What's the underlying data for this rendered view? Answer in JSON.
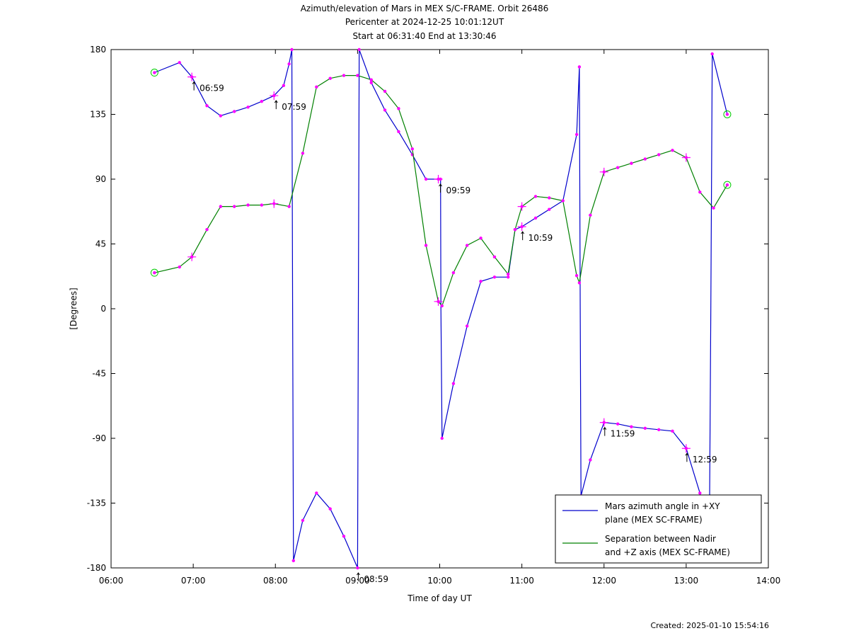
{
  "chart_data": {
    "type": "line",
    "title": "Azimuth/elevation of Mars in MEX S/C-FRAME.  Orbit 26486",
    "subtitle_lines": [
      "Pericenter at 2024-12-25 10:01:12UT",
      "Start at 06:31:40 End at 13:30:46"
    ],
    "xlabel": "Time of day UT",
    "ylabel": "[Degrees]",
    "xlim": [
      6,
      14
    ],
    "ylim": [
      -180,
      180
    ],
    "x_ticks": [
      6,
      7,
      8,
      9,
      10,
      11,
      12,
      13,
      14
    ],
    "x_tick_labels": [
      "06:00",
      "07:00",
      "08:00",
      "09:00",
      "10:00",
      "11:00",
      "12:00",
      "13:00",
      "14:00"
    ],
    "y_ticks": [
      180,
      135,
      90,
      45,
      0,
      -45,
      -90,
      -135,
      -180
    ],
    "y_tick_labels": [
      "180",
      "135",
      "90",
      "45",
      "0",
      "-45",
      "-90",
      "-135",
      "-180"
    ],
    "legend_position": "bottom-right",
    "series": [
      {
        "name": "Mars azimuth angle in +XY\nplane (MEX SC-FRAME)",
        "color": "#0000cc",
        "points": [
          [
            6.528,
            164
          ],
          [
            6.833,
            171
          ],
          [
            6.983,
            161
          ],
          [
            7.167,
            141
          ],
          [
            7.333,
            134
          ],
          [
            7.5,
            137
          ],
          [
            7.667,
            140
          ],
          [
            7.833,
            144
          ],
          [
            7.983,
            148
          ],
          [
            8.1,
            155
          ],
          [
            8.167,
            170
          ],
          [
            8.2,
            180
          ],
          [
            8.21,
            0
          ],
          [
            8.22,
            -175
          ],
          [
            8.333,
            -147
          ],
          [
            8.5,
            -128
          ],
          [
            8.667,
            -139
          ],
          [
            8.833,
            -158
          ],
          [
            9.0,
            -180
          ],
          [
            9.01,
            0
          ],
          [
            9.02,
            180
          ],
          [
            9.167,
            157
          ],
          [
            9.333,
            138
          ],
          [
            9.5,
            123
          ],
          [
            9.667,
            107
          ],
          [
            9.833,
            90
          ],
          [
            9.983,
            90
          ],
          [
            10.01,
            90
          ],
          [
            10.015,
            0
          ],
          [
            10.028,
            -90
          ],
          [
            10.167,
            -52
          ],
          [
            10.333,
            -12
          ],
          [
            10.5,
            19
          ],
          [
            10.667,
            22
          ],
          [
            10.833,
            22
          ],
          [
            10.917,
            55
          ],
          [
            11.0,
            57
          ],
          [
            11.167,
            63
          ],
          [
            11.333,
            69
          ],
          [
            11.5,
            75
          ],
          [
            11.667,
            121
          ],
          [
            11.7,
            168
          ],
          [
            11.71,
            0
          ],
          [
            11.72,
            -130
          ],
          [
            11.833,
            -105
          ],
          [
            12.0,
            -79
          ],
          [
            12.167,
            -80
          ],
          [
            12.333,
            -82
          ],
          [
            12.5,
            -83
          ],
          [
            12.667,
            -84
          ],
          [
            12.833,
            -85
          ],
          [
            13.0,
            -97
          ],
          [
            13.167,
            -128
          ],
          [
            13.283,
            -155
          ],
          [
            13.3,
            0
          ],
          [
            13.317,
            177
          ],
          [
            13.5,
            135
          ]
        ],
        "plus_markers": [
          [
            6.983,
            161
          ],
          [
            7.983,
            148
          ],
          [
            9.983,
            90
          ],
          [
            11.0,
            57
          ],
          [
            12.0,
            -79
          ],
          [
            13.0,
            -97
          ]
        ],
        "start_end_markers": [
          [
            6.528,
            164
          ],
          [
            13.5,
            135
          ]
        ]
      },
      {
        "name": "Separation between Nadir\nand +Z axis (MEX SC-FRAME)",
        "color": "#008000",
        "points": [
          [
            6.528,
            25
          ],
          [
            6.833,
            29
          ],
          [
            6.983,
            36
          ],
          [
            7.167,
            55
          ],
          [
            7.333,
            71
          ],
          [
            7.5,
            71
          ],
          [
            7.667,
            72
          ],
          [
            7.833,
            72
          ],
          [
            7.983,
            73
          ],
          [
            8.167,
            71
          ],
          [
            8.333,
            108
          ],
          [
            8.5,
            154
          ],
          [
            8.667,
            160
          ],
          [
            8.833,
            162
          ],
          [
            9.0,
            162
          ],
          [
            9.167,
            159
          ],
          [
            9.333,
            151
          ],
          [
            9.5,
            139
          ],
          [
            9.667,
            111
          ],
          [
            9.833,
            44
          ],
          [
            9.983,
            5
          ],
          [
            10.028,
            2
          ],
          [
            10.167,
            25
          ],
          [
            10.333,
            44
          ],
          [
            10.5,
            49
          ],
          [
            10.667,
            36
          ],
          [
            10.833,
            24
          ],
          [
            10.917,
            55
          ],
          [
            11.0,
            71
          ],
          [
            11.167,
            78
          ],
          [
            11.333,
            77
          ],
          [
            11.5,
            75
          ],
          [
            11.667,
            23
          ],
          [
            11.7,
            18
          ],
          [
            11.833,
            65
          ],
          [
            12.0,
            95
          ],
          [
            12.167,
            98
          ],
          [
            12.333,
            101
          ],
          [
            12.5,
            104
          ],
          [
            12.667,
            107
          ],
          [
            12.833,
            110
          ],
          [
            13.0,
            105
          ],
          [
            13.167,
            81
          ],
          [
            13.333,
            70
          ],
          [
            13.5,
            86
          ]
        ],
        "plus_markers": [
          [
            6.983,
            36
          ],
          [
            7.983,
            73
          ],
          [
            9.983,
            5
          ],
          [
            11.0,
            71
          ],
          [
            12.0,
            95
          ],
          [
            13.0,
            105
          ]
        ],
        "start_end_markers": [
          [
            6.528,
            25
          ],
          [
            13.5,
            86
          ]
        ]
      }
    ],
    "time_annotations": [
      {
        "x": 6.983,
        "y": 161,
        "label": "06:59"
      },
      {
        "x": 7.983,
        "y": 148,
        "label": "07:59"
      },
      {
        "x": 8.983,
        "y": -180,
        "label": "08:59"
      },
      {
        "x": 9.983,
        "y": 90,
        "label": "09:59"
      },
      {
        "x": 10.983,
        "y": 57,
        "label": "10:59"
      },
      {
        "x": 11.983,
        "y": -79,
        "label": "11:59"
      },
      {
        "x": 12.983,
        "y": -97,
        "label": "12:59"
      }
    ],
    "marker_color": "#ff00ff",
    "start_end_marker_color": "#00cc00"
  },
  "footer": {
    "created": "Created: 2025-01-10 15:54:16"
  }
}
